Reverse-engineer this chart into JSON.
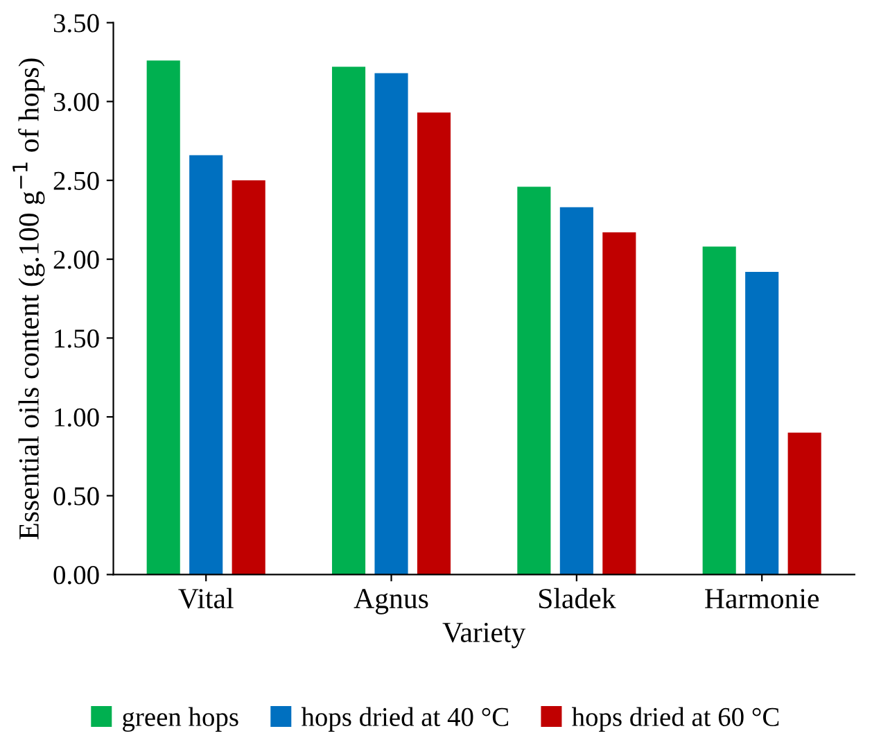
{
  "chart_data": {
    "type": "bar",
    "categories": [
      "Vital",
      "Agnus",
      "Sladek",
      "Harmonie"
    ],
    "xlabel": "Variety",
    "ylabel": "Essential oils content (g.100 g$^{−1}$ of hops)",
    "series": [
      {
        "name": "green hops",
        "color": "#00b050",
        "values": [
          3.26,
          3.22,
          2.46,
          2.08
        ]
      },
      {
        "name": "hops dried at 40 °C",
        "color": "#0070c0",
        "values": [
          2.66,
          3.18,
          2.33,
          1.92
        ]
      },
      {
        "name": "hops dried at 60 °C",
        "color": "#c00000",
        "values": [
          2.5,
          2.93,
          2.17,
          0.9
        ]
      }
    ],
    "ylim": [
      0,
      3.5
    ],
    "yticks": [
      {
        "value": 0,
        "label": "0.00"
      },
      {
        "value": 0.5,
        "label": "0.50"
      },
      {
        "value": 1,
        "label": "1.00"
      },
      {
        "value": 1.5,
        "label": "1.50"
      },
      {
        "value": 2,
        "label": "2.00"
      },
      {
        "value": 2.5,
        "label": "2.50"
      },
      {
        "value": 3,
        "label": "3.00"
      },
      {
        "value": 3.5,
        "label": "3.50"
      }
    ],
    "grid": false,
    "legend": "bottom"
  }
}
